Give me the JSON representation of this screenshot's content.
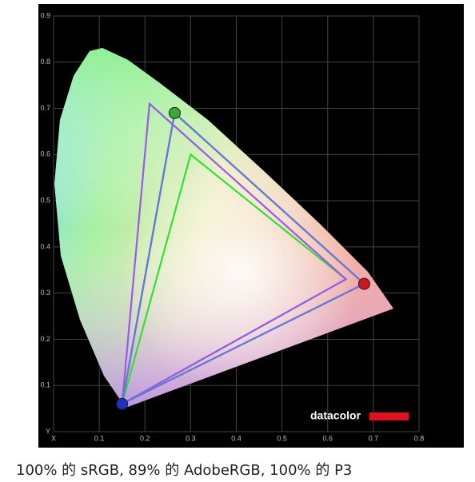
{
  "chart_data": {
    "type": "gamut",
    "logo": "datacolor",
    "caption": "100% 的 sRGB, 89% 的 AdobeRGB, 100% 的 P3",
    "xlim": [
      0,
      0.8
    ],
    "ylim": [
      0,
      0.9
    ],
    "xticks": [
      {
        "value": 0,
        "label": "X"
      },
      0.1,
      0.2,
      0.3,
      0.4,
      0.5,
      0.6,
      0.7,
      0.8
    ],
    "yticks": [
      {
        "value": 0,
        "label": "Y"
      },
      0.1,
      0.2,
      0.3,
      0.4,
      0.5,
      0.6,
      0.7,
      0.8,
      0.9
    ],
    "grid": true,
    "series": [
      {
        "color": "#33e033",
        "x": [
          0.64,
          0.3,
          0.15
        ],
        "values": [
          0.33,
          0.6,
          0.06
        ]
      },
      {
        "color": "#9b59e8",
        "x": [
          0.64,
          0.21,
          0.15
        ],
        "values": [
          0.33,
          0.71,
          0.06
        ]
      },
      {
        "color": "#e03030",
        "x": [
          0.68,
          0.265,
          0.15
        ],
        "values": [
          0.32,
          0.69,
          0.06
        ]
      },
      {
        "color": "#5a7de0",
        "x": [
          0.68,
          0.265,
          0.15
        ],
        "values": [
          0.32,
          0.69,
          0.06
        ]
      }
    ],
    "points": {
      "x": [
        0.68,
        0.265,
        0.15
      ],
      "values": [
        0.32,
        0.69,
        0.06
      ],
      "colors": [
        "#d01818",
        "#3aa83a",
        "#2030c8"
      ]
    }
  }
}
